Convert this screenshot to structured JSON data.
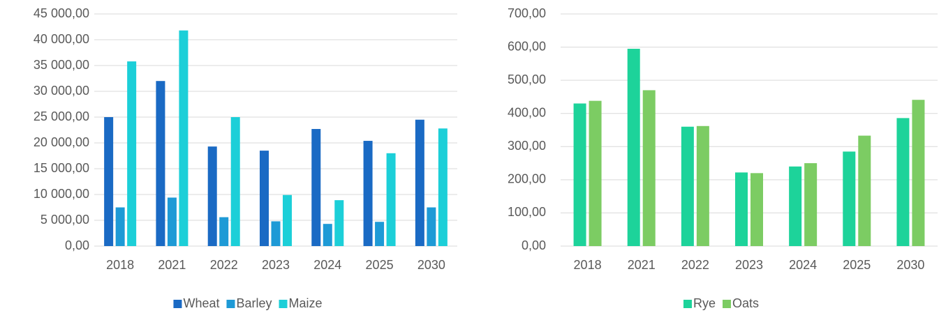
{
  "chart_data": [
    {
      "type": "bar",
      "categories": [
        "2018",
        "2021",
        "2022",
        "2023",
        "2024",
        "2025",
        "2030"
      ],
      "series": [
        {
          "name": "Wheat",
          "color": "#1a6ac4",
          "values": [
            25000,
            32000,
            19300,
            18500,
            22700,
            20400,
            24500
          ]
        },
        {
          "name": "Barley",
          "color": "#1e9ad6",
          "values": [
            7500,
            9400,
            5600,
            4800,
            4300,
            4700,
            7500
          ]
        },
        {
          "name": "Maize",
          "color": "#1ccfd8",
          "values": [
            35800,
            41800,
            25000,
            9900,
            8900,
            18000,
            22800
          ]
        }
      ],
      "ylim": [
        0,
        45000
      ],
      "yticks": [
        {
          "value": 0,
          "label": "0,00"
        },
        {
          "value": 5000,
          "label": "5 000,00"
        },
        {
          "value": 10000,
          "label": "10 000,00"
        },
        {
          "value": 15000,
          "label": "15 000,00"
        },
        {
          "value": 20000,
          "label": "20 000,00"
        },
        {
          "value": 25000,
          "label": "25 000,00"
        },
        {
          "value": 30000,
          "label": "30 000,00"
        },
        {
          "value": 35000,
          "label": "35 000,00"
        },
        {
          "value": 40000,
          "label": "40 000,00"
        },
        {
          "value": 45000,
          "label": "45 000,00"
        }
      ],
      "grid": true,
      "legend": "bottom"
    },
    {
      "type": "bar",
      "categories": [
        "2018",
        "2021",
        "2022",
        "2023",
        "2024",
        "2025",
        "2030"
      ],
      "series": [
        {
          "name": "Rye",
          "color": "#1dd39a",
          "values": [
            430,
            595,
            360,
            222,
            240,
            285,
            386
          ]
        },
        {
          "name": "Oats",
          "color": "#7ccc63",
          "values": [
            438,
            470,
            362,
            220,
            250,
            333,
            441
          ]
        }
      ],
      "ylim": [
        0,
        700
      ],
      "yticks": [
        {
          "value": 0,
          "label": "0,00"
        },
        {
          "value": 100,
          "label": "100,00"
        },
        {
          "value": 200,
          "label": "200,00"
        },
        {
          "value": 300,
          "label": "300,00"
        },
        {
          "value": 400,
          "label": "400,00"
        },
        {
          "value": 500,
          "label": "500,00"
        },
        {
          "value": 600,
          "label": "600,00"
        },
        {
          "value": 700,
          "label": "700,00"
        }
      ],
      "grid": true,
      "legend": "bottom"
    }
  ]
}
